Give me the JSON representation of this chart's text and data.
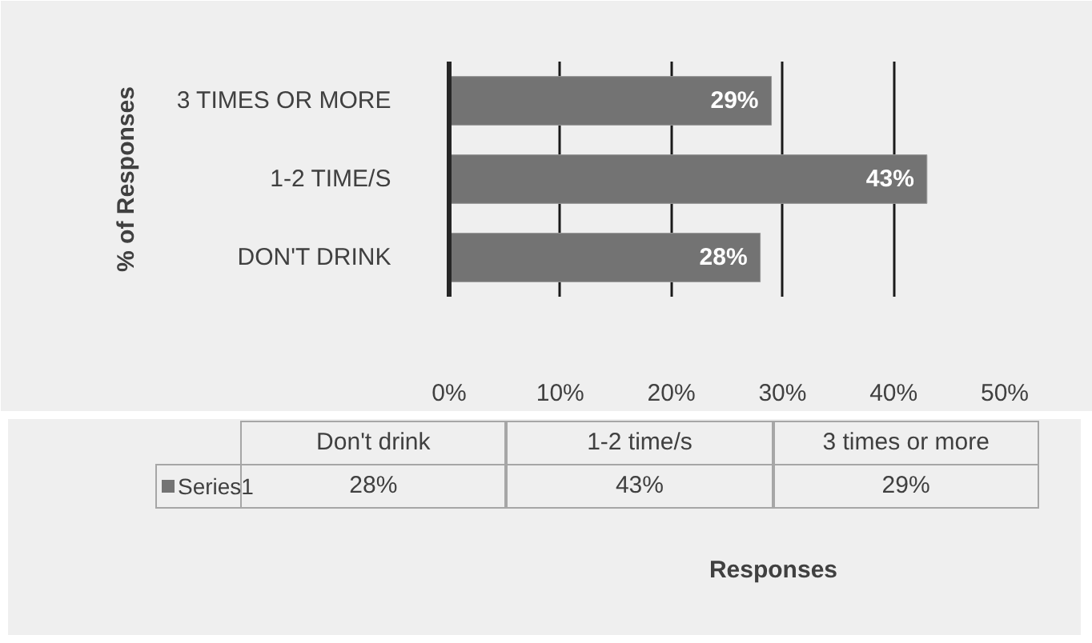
{
  "chart_data": {
    "type": "bar",
    "orientation": "horizontal",
    "ylabel": "% of Responses",
    "categories": [
      "3 TIMES OR MORE",
      "1-2 TIME/S",
      "DON'T DRINK"
    ],
    "series": [
      {
        "name": "Series1",
        "color": "#737373",
        "values": [
          29,
          43,
          28
        ],
        "value_labels": [
          "29%",
          "43%",
          "28%"
        ]
      }
    ],
    "xlim": [
      0,
      50
    ],
    "xticks": [
      {
        "value": 0,
        "label": "0%"
      },
      {
        "value": 10,
        "label": "10%"
      },
      {
        "value": 20,
        "label": "20%"
      },
      {
        "value": 30,
        "label": "30%"
      },
      {
        "value": 40,
        "label": "40%"
      },
      {
        "value": 50,
        "label": "50%"
      }
    ],
    "grid": "x",
    "legend": "bottom",
    "annotations": [
      "Don't drink",
      "1-2 time/s",
      "3 times or more",
      "Responses"
    ]
  }
}
